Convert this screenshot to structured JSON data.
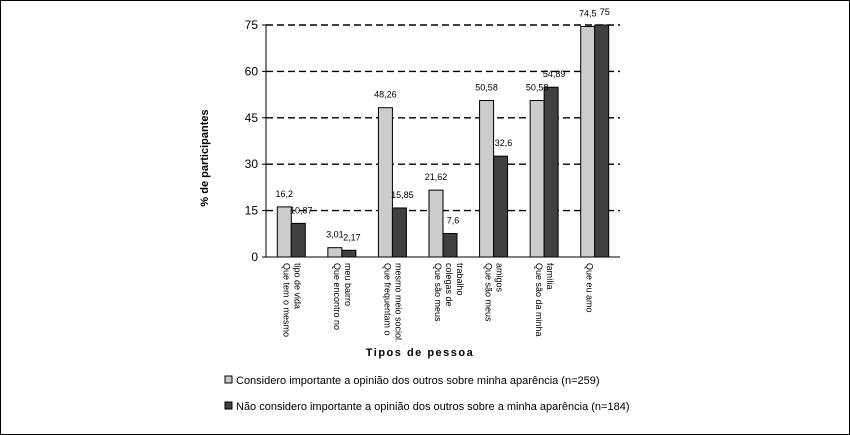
{
  "chart_data": {
    "type": "bar",
    "title": "",
    "xlabel": "Tipos de pessoa",
    "ylabel": "% de participantes",
    "ylim": [
      0,
      75
    ],
    "yticks": [
      0,
      15,
      30,
      45,
      60,
      75
    ],
    "grid": "dashed horizontal",
    "legend_position": "bottom",
    "categories": [
      [
        "Que tem o mesmo",
        "tipo de vida"
      ],
      [
        "Que encontro no",
        "meu bairro"
      ],
      [
        "Que frequentam o",
        "mesmo meio sociol."
      ],
      [
        "Que são meus",
        "colegas de",
        "trabalho"
      ],
      [
        "Que são meus",
        "amigos"
      ],
      [
        "Que são da minha",
        "família"
      ],
      [
        "Que eu amo"
      ]
    ],
    "series": [
      {
        "name": "Considero importante a opinião dos outros sobre minha aparência (n=259)",
        "color": "#cccccc",
        "values": [
          16.2,
          3.01,
          48.26,
          21.62,
          50.58,
          50.58,
          74.5
        ],
        "labels": [
          "16,2",
          "3,01",
          "48,26",
          "21,62",
          "50,58",
          "50,58",
          "74,5"
        ]
      },
      {
        "name": "Não considero importante a opinião dos outros sobre a minha aparência (n=184)",
        "color": "#404040",
        "values": [
          10.87,
          2.17,
          15.85,
          7.6,
          32.6,
          54.89,
          75
        ],
        "labels": [
          "10,87",
          "2,17",
          "15,85",
          "7,6",
          "32,6",
          "54,89",
          "75"
        ]
      }
    ]
  }
}
